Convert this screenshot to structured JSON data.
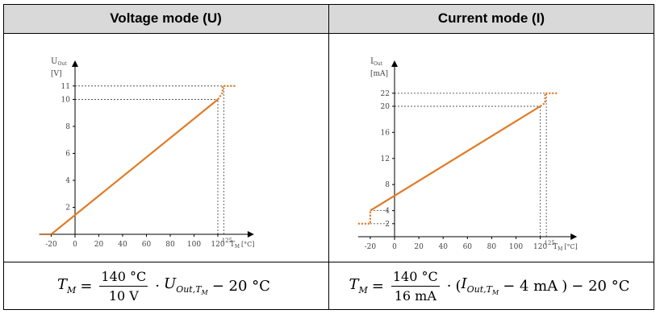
{
  "headers": {
    "voltage": "Voltage mode (U)",
    "current": "Current mode (I)"
  },
  "formulas": {
    "voltage": {
      "lhs": "T",
      "lhs_sub": "M",
      "eq": "=",
      "num": "140 °C",
      "den": "10 V",
      "dot": "·",
      "var": "U",
      "var_sub": "Out,T",
      "var_subsub": "M",
      "tail": "− 20 °C"
    },
    "current": {
      "lhs": "T",
      "lhs_sub": "M",
      "eq": "=",
      "num": "140 °C",
      "den": "16 mA",
      "dot": "·",
      "open": "(",
      "var": "I",
      "var_sub": "Out,T",
      "var_subsub": "M",
      "minus_term": "− 4 mA",
      "close": ")",
      "tail": "− 20 °C"
    }
  },
  "colors": {
    "line": "#e07b27",
    "header_bg": "#d9d9d9",
    "guide": "#555555"
  },
  "chart_data": [
    {
      "type": "line",
      "title": "",
      "ylabel": "U",
      "ylabel_sub": "Out",
      "yunit": "[V]",
      "xlabel": "T",
      "xlabel_sub": "M",
      "xunit": "[°C]",
      "xlim": [
        -30,
        145
      ],
      "ylim": [
        0,
        12
      ],
      "x_ticks": [
        -20,
        0,
        20,
        40,
        60,
        80,
        100,
        120
      ],
      "x_tick_labels": [
        "-20",
        "0",
        "20",
        "40",
        "60",
        "80",
        "100",
        "120"
      ],
      "x_extra_tick": 125,
      "x_extra_tick_label": "125",
      "y_ticks": [
        2,
        4,
        6,
        8,
        10,
        11
      ],
      "y_tick_labels": [
        "2",
        "4",
        "6",
        "8",
        "10",
        "11"
      ],
      "series": [
        {
          "style": "solid",
          "points": [
            [
              -20,
              0
            ],
            [
              120,
              10
            ]
          ]
        },
        {
          "style": "dotted",
          "points": [
            [
              -30,
              0
            ],
            [
              -20,
              0
            ]
          ]
        },
        {
          "style": "dotted",
          "points": [
            [
              120,
              10
            ],
            [
              124,
              10.5
            ],
            [
              124,
              11
            ],
            [
              135,
              11
            ]
          ]
        }
      ],
      "guides": [
        {
          "from": [
            0,
            10
          ],
          "to": [
            120,
            10
          ]
        },
        {
          "from": [
            120,
            0
          ],
          "to": [
            120,
            10
          ]
        },
        {
          "from": [
            0,
            11
          ],
          "to": [
            125,
            11
          ]
        },
        {
          "from": [
            125,
            0
          ],
          "to": [
            125,
            11
          ]
        }
      ]
    },
    {
      "type": "line",
      "title": "",
      "ylabel": "I",
      "ylabel_sub": "Out",
      "yunit": "[mA]",
      "xlabel": "T",
      "xlabel_sub": "M",
      "xunit": "[°C]",
      "xlim": [
        -30,
        145
      ],
      "ylim": [
        0,
        24
      ],
      "x_ticks": [
        -20,
        0,
        20,
        40,
        60,
        80,
        100,
        120
      ],
      "x_tick_labels": [
        "-20",
        "0",
        "20",
        "40",
        "60",
        "80",
        "100",
        "120"
      ],
      "x_extra_tick": 125,
      "x_extra_tick_label": "125",
      "y_ticks": [
        2,
        4,
        8,
        12,
        16,
        20,
        22
      ],
      "y_tick_labels": [
        "2",
        "4",
        "8",
        "12",
        "16",
        "20",
        "22"
      ],
      "series": [
        {
          "style": "solid",
          "points": [
            [
              -20,
              4
            ],
            [
              120,
              20
            ]
          ]
        },
        {
          "style": "dotted",
          "points": [
            [
              -30,
              2
            ],
            [
              -20,
              2
            ],
            [
              -20,
              4
            ]
          ]
        },
        {
          "style": "dotted",
          "points": [
            [
              120,
              20
            ],
            [
              124,
              20.5
            ],
            [
              124,
              22
            ],
            [
              135,
              22
            ]
          ]
        }
      ],
      "guides": [
        {
          "from": [
            -20,
            4
          ],
          "to": [
            -5,
            4
          ]
        },
        {
          "from": [
            -20,
            2
          ],
          "to": [
            -5,
            2
          ]
        },
        {
          "from": [
            0,
            20
          ],
          "to": [
            120,
            20
          ]
        },
        {
          "from": [
            120,
            0
          ],
          "to": [
            120,
            20
          ]
        },
        {
          "from": [
            0,
            22
          ],
          "to": [
            125,
            22
          ]
        },
        {
          "from": [
            125,
            0
          ],
          "to": [
            125,
            22
          ]
        }
      ]
    }
  ]
}
